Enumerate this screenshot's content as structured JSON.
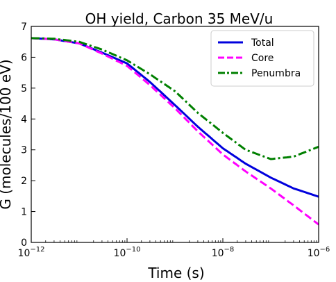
{
  "chart_data": {
    "type": "line",
    "title": "OH yield, Carbon 35 MeV/u",
    "xlabel": "Time (s)",
    "ylabel": "G (molecules/100 eV)",
    "x_scale": "log",
    "xlim": [
      1e-12,
      1e-06
    ],
    "ylim": [
      0,
      7
    ],
    "x_ticks": [
      {
        "value": 1e-12,
        "base": "10",
        "exp": "−12"
      },
      {
        "value": 1e-10,
        "base": "10",
        "exp": "−10"
      },
      {
        "value": 1e-08,
        "base": "10",
        "exp": "−8"
      },
      {
        "value": 1e-06,
        "base": "10",
        "exp": "−6"
      }
    ],
    "y_ticks": [
      "0",
      "1",
      "2",
      "3",
      "4",
      "5",
      "6",
      "7"
    ],
    "grid": false,
    "legend_position": "top-right",
    "series": [
      {
        "name": "Total",
        "color": "#0000dd",
        "style": "solid",
        "x": [
          1e-12,
          3e-12,
          1e-11,
          3e-11,
          1e-10,
          3e-10,
          1e-09,
          3e-09,
          1e-08,
          3e-08,
          1e-07,
          3e-07,
          1e-06
        ],
        "y": [
          6.62,
          6.58,
          6.45,
          6.15,
          5.8,
          5.2,
          4.45,
          3.75,
          3.05,
          2.55,
          2.1,
          1.75,
          1.48
        ]
      },
      {
        "name": "Core",
        "color": "#ff00ff",
        "style": "dashed",
        "x": [
          1e-12,
          3e-12,
          1e-11,
          3e-11,
          1e-10,
          3e-10,
          1e-09,
          3e-09,
          1e-08,
          3e-08,
          1e-07,
          3e-07,
          1e-06
        ],
        "y": [
          6.62,
          6.58,
          6.45,
          6.12,
          5.72,
          5.1,
          4.35,
          3.6,
          2.85,
          2.3,
          1.75,
          1.2,
          0.58
        ]
      },
      {
        "name": "Penumbra",
        "color": "#008000",
        "style": "dashdot",
        "x": [
          1e-12,
          3e-12,
          1e-11,
          3e-11,
          1e-10,
          3e-10,
          1e-09,
          3e-09,
          1e-08,
          3e-08,
          1e-07,
          3e-07,
          1e-06
        ],
        "y": [
          6.62,
          6.6,
          6.5,
          6.25,
          5.9,
          5.45,
          4.9,
          4.2,
          3.55,
          3.0,
          2.7,
          2.78,
          3.1
        ]
      }
    ]
  }
}
